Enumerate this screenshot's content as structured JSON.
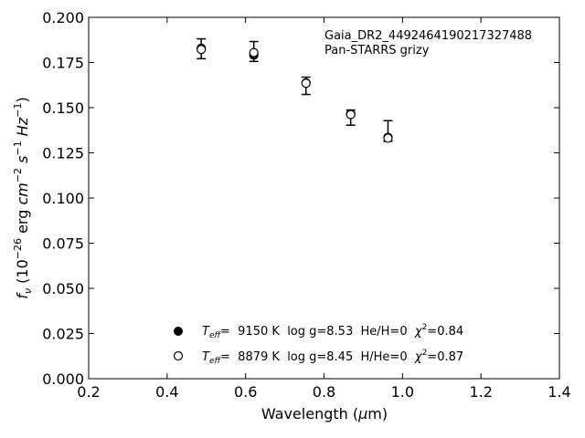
{
  "chart_data": {
    "type": "scatter",
    "annotation": [
      "Gaia_DR2_4492464190217327488",
      "Pan-STARRS grizy"
    ],
    "xlabel": "Wavelength (μm)",
    "ylabel": "f_ν (10^-26 erg cm^-2 s^-1 Hz^-1)",
    "xlim": [
      0.2,
      1.4
    ],
    "ylim": [
      0.0,
      0.2
    ],
    "xticks": [
      "0.2",
      "0.4",
      "0.6",
      "0.8",
      "1.0",
      "1.2",
      "1.4"
    ],
    "yticks": [
      "0.000",
      "0.025",
      "0.050",
      "0.075",
      "0.100",
      "0.125",
      "0.150",
      "0.175",
      "0.200"
    ],
    "observed": {
      "x": [
        0.487,
        0.621,
        0.754,
        0.868,
        0.963
      ],
      "y": [
        0.1826,
        0.1811,
        0.1621,
        0.1445,
        0.1371
      ],
      "yerr": [
        0.0055,
        0.0055,
        0.0048,
        0.0042,
        0.0057
      ]
    },
    "series": [
      {
        "name": "T_eff=  9150 K  log g=8.53  He/H=0  χ²=0.84",
        "marker": "filled-circle",
        "x": [
          0.487,
          0.621,
          0.754,
          0.868,
          0.963
        ],
        "y": [
          0.1829,
          0.1791,
          0.1637,
          0.1466,
          0.1336
        ]
      },
      {
        "name": "T_eff=  8879 K  log g=8.45  H/He=0  χ²=0.87",
        "marker": "open-circle",
        "x": [
          0.487,
          0.621,
          0.754,
          0.868,
          0.963
        ],
        "y": [
          0.1822,
          0.1805,
          0.1635,
          0.1462,
          0.1331
        ]
      }
    ],
    "legend": {
      "placement": "lower-center",
      "items": [
        {
          "marker": "filled-circle",
          "teff": "9150 K",
          "logg": "log g=8.53",
          "comp": "He/H=0",
          "chi2": "=0.84"
        },
        {
          "marker": "open-circle",
          "teff": "8879 K",
          "logg": "log g=8.45",
          "comp": "H/He=0",
          "chi2": "=0.87"
        }
      ]
    },
    "grid": false
  }
}
